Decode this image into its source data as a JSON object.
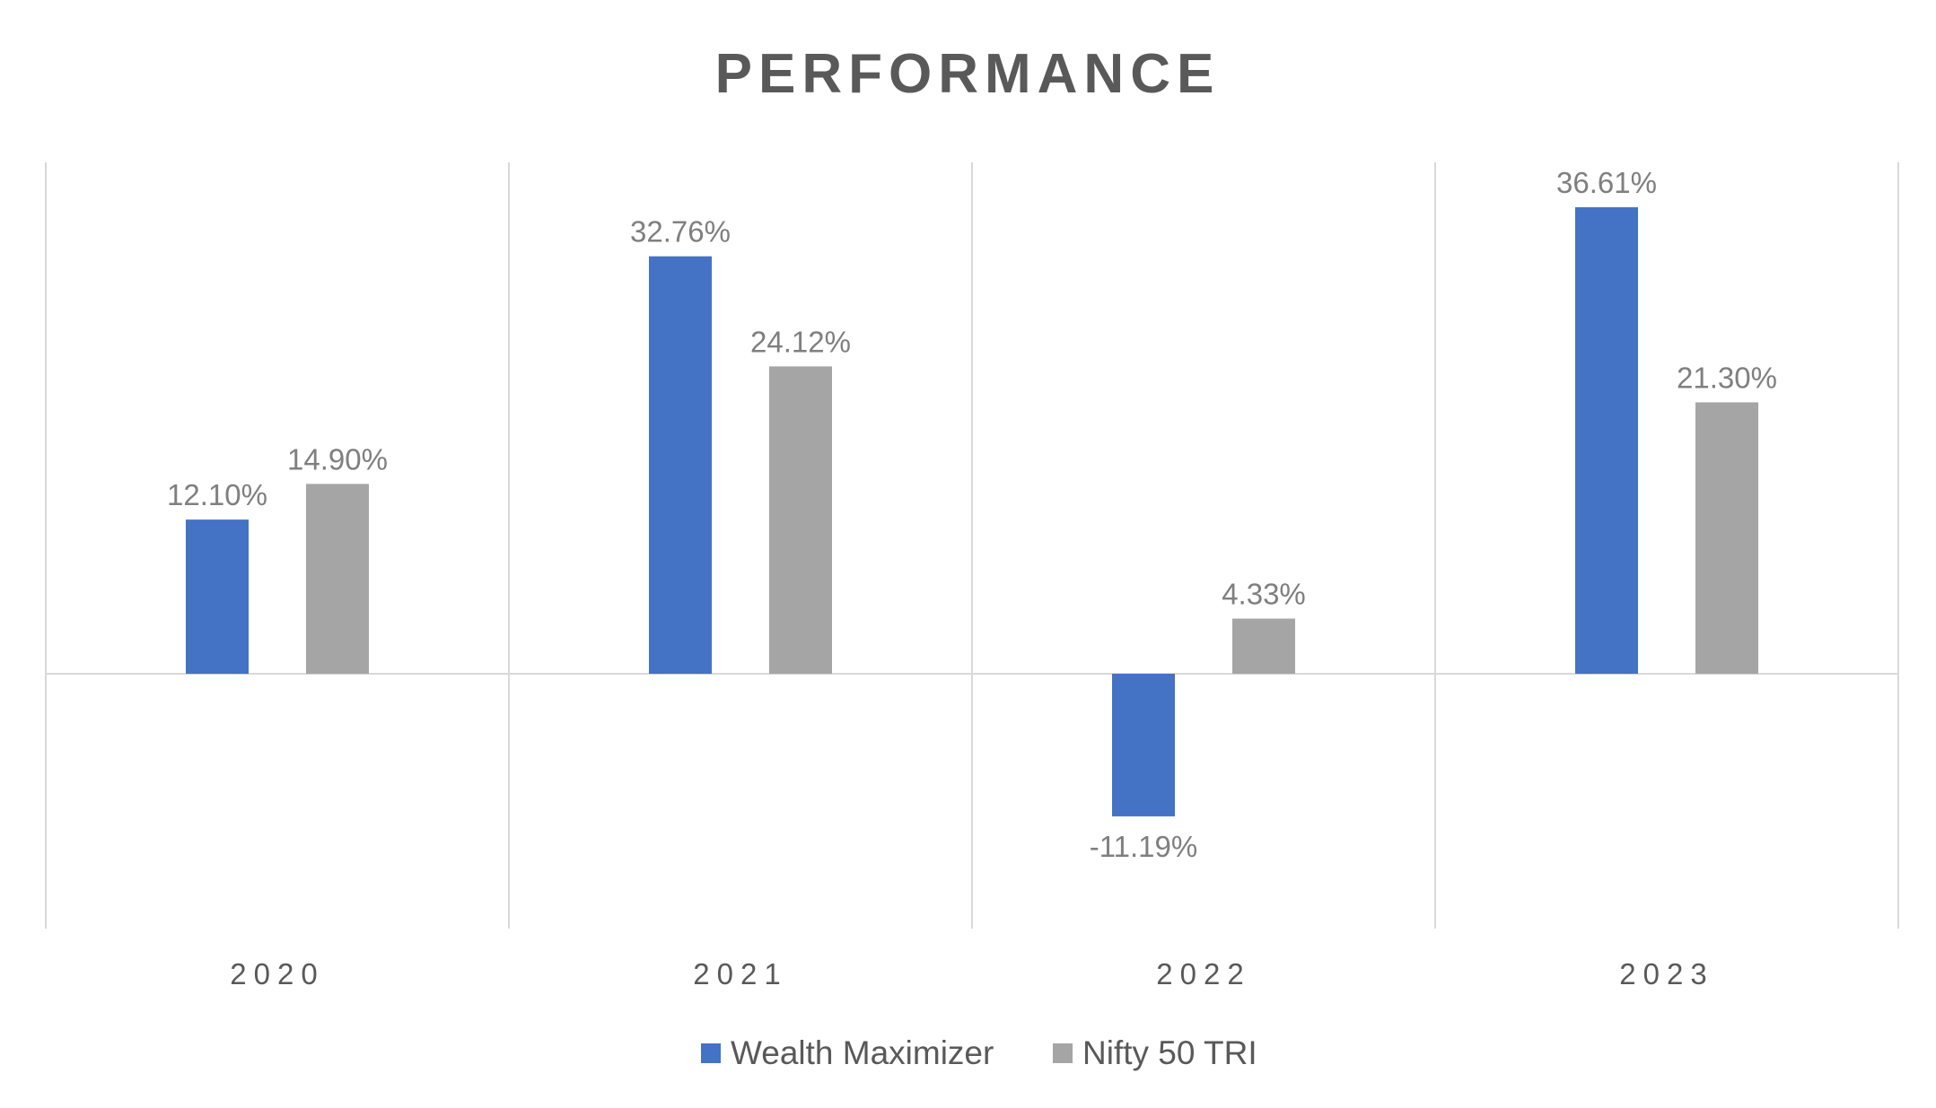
{
  "chart_data": {
    "type": "bar",
    "title": "PERFORMANCE",
    "categories": [
      "2020",
      "2021",
      "2022",
      "2023"
    ],
    "series": [
      {
        "name": "Wealth Maximizer",
        "color": "#4472c4",
        "values": [
          12.1,
          32.76,
          -11.19,
          36.61
        ],
        "labels": [
          "12.10%",
          "32.76%",
          "-11.19%",
          "36.61%"
        ]
      },
      {
        "name": "Nifty 50 TRI",
        "color": "#a5a5a5",
        "values": [
          14.9,
          24.12,
          4.33,
          21.3
        ],
        "labels": [
          "14.90%",
          "24.12%",
          "4.33%",
          "21.30%"
        ]
      }
    ],
    "ylim": [
      -20,
      40
    ],
    "grid": "vertical category separators",
    "legend": "bottom-center"
  }
}
